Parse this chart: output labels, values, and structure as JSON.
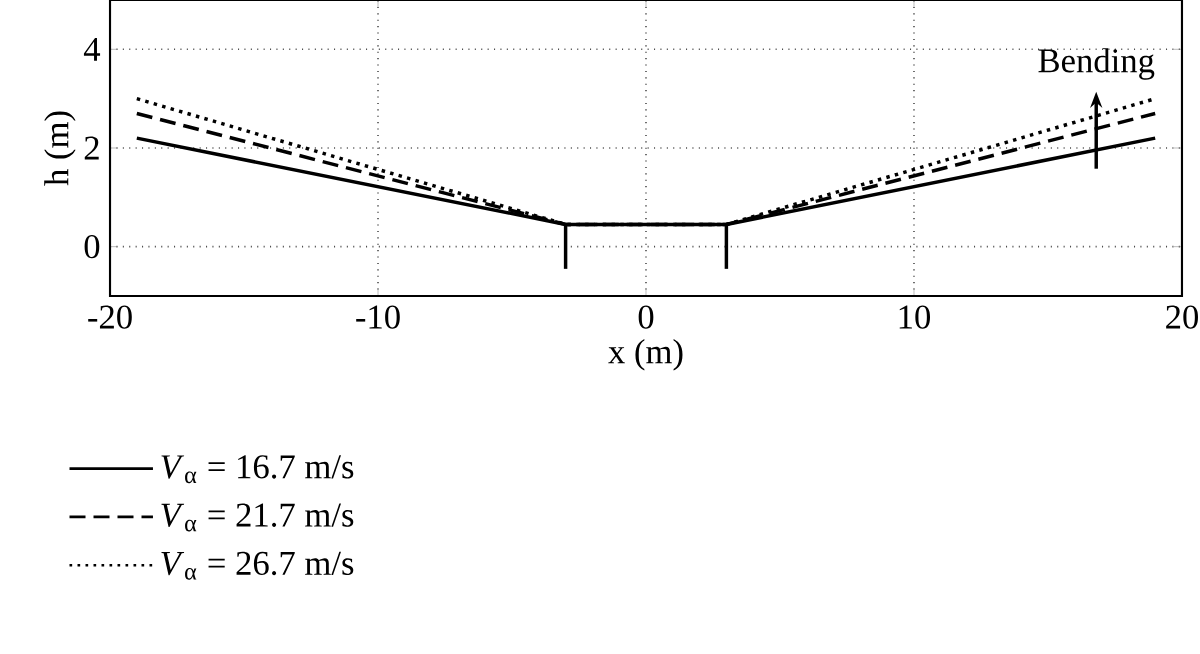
{
  "chart_data": {
    "type": "line",
    "xlabel": "x (m)",
    "ylabel": "h (m)",
    "xlim": [
      -20,
      20
    ],
    "ylim": [
      -1,
      5
    ],
    "xticks": [
      -20,
      -10,
      0,
      10,
      20
    ],
    "yticks": [
      0,
      2,
      4
    ],
    "grid": true,
    "legend": "bottom left",
    "series": [
      {
        "name": "*V*$_{α}$ = 16.7 m/s",
        "color": "#000000",
        "line_style": "solid",
        "x": [
          -19,
          -3,
          3,
          19
        ],
        "values": [
          2.2,
          0.45,
          0.45,
          2.2
        ]
      },
      {
        "name": "*V*$_{α}$ = 21.7 m/s",
        "color": "#000000",
        "line_style": "dashed",
        "x": [
          -19,
          -3,
          3,
          19
        ],
        "values": [
          2.7,
          0.45,
          0.45,
          2.7
        ]
      },
      {
        "name": "*V*$_{α}$ = 26.7 m/s",
        "color": "#000000",
        "line_style": "dotted",
        "x": [
          -19,
          -3,
          3,
          19
        ],
        "values": [
          3.0,
          0.45,
          0.45,
          3.0
        ]
      },
      {
        "color": "#000000",
        "line_style": "solid",
        "x": [
          -3,
          -3
        ],
        "values": [
          0.45,
          -0.45
        ]
      },
      {
        "color": "#000000",
        "line_style": "solid",
        "x": [
          3,
          3
        ],
        "values": [
          0.45,
          -0.45
        ]
      }
    ],
    "annotations": [
      "Bending"
    ]
  }
}
